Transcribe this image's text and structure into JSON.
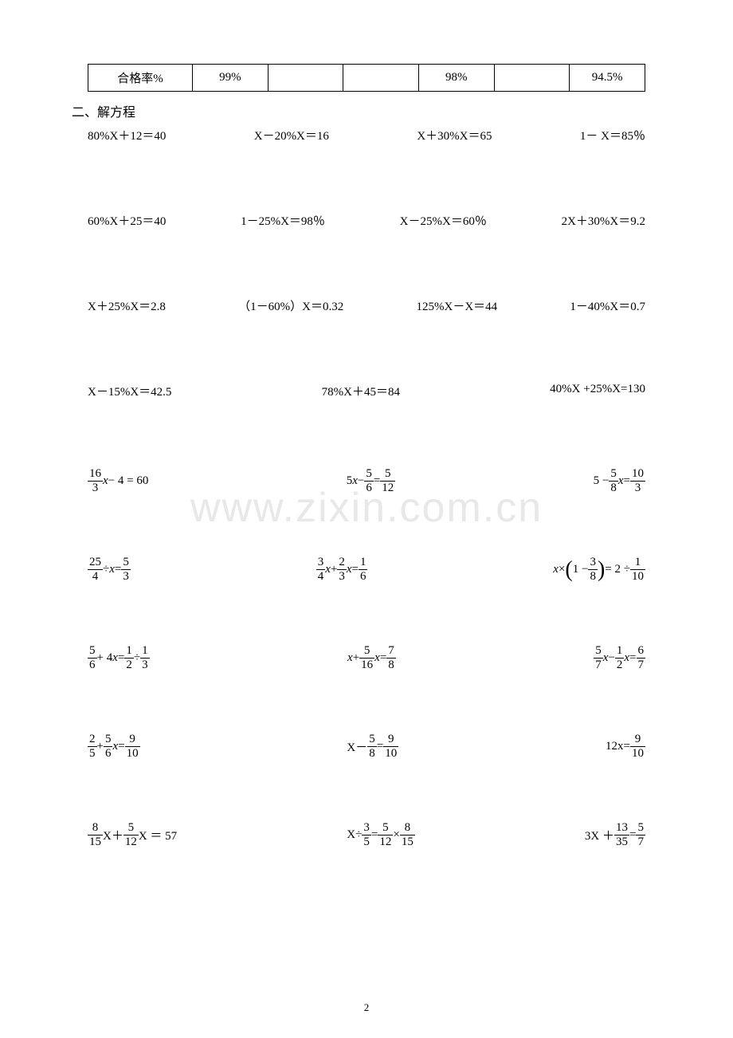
{
  "table": {
    "row_label": "合格率%",
    "cells": [
      "99%",
      "",
      "",
      "98%",
      "",
      "94.5%"
    ]
  },
  "section_title": "二、解方程",
  "plain_rows": [
    [
      "80%X＋12＝40",
      "X－20%X＝16",
      "X＋30%X＝65",
      "1－ X＝85％"
    ],
    [
      "60%X＋25＝40",
      "1－25%X＝98％",
      "X－25%X＝60％",
      "2X＋30%X＝9.2"
    ],
    [
      "X＋25%X＝2.8",
      "（1－60%）X＝0.32",
      "125%X－X＝44",
      "1－40%X＝0.7"
    ],
    [
      "X－15%X＝42.5",
      "78%X＋45＝84",
      "40%X +25%X=130"
    ]
  ],
  "frac_rows": [
    [
      {
        "parts": [
          {
            "t": "frac",
            "n": "16",
            "d": "3"
          },
          {
            "t": "txt",
            "v": " "
          },
          {
            "t": "ital",
            "v": "x"
          },
          {
            "t": "txt",
            "v": " − 4 = 60"
          }
        ]
      },
      {
        "parts": [
          {
            "t": "txt",
            "v": "5"
          },
          {
            "t": "ital",
            "v": "x"
          },
          {
            "t": "txt",
            "v": " − "
          },
          {
            "t": "frac",
            "n": "5",
            "d": "6"
          },
          {
            "t": "txt",
            "v": " = "
          },
          {
            "t": "frac",
            "n": "5",
            "d": "12"
          }
        ]
      },
      {
        "parts": [
          {
            "t": "txt",
            "v": "5 − "
          },
          {
            "t": "frac",
            "n": "5",
            "d": "8"
          },
          {
            "t": "txt",
            "v": " "
          },
          {
            "t": "ital",
            "v": "x"
          },
          {
            "t": "txt",
            "v": " = "
          },
          {
            "t": "frac",
            "n": "10",
            "d": "3"
          }
        ]
      }
    ],
    [
      {
        "parts": [
          {
            "t": "frac",
            "n": "25",
            "d": "4"
          },
          {
            "t": "txt",
            "v": " ÷ "
          },
          {
            "t": "ital",
            "v": "x"
          },
          {
            "t": "txt",
            "v": " = "
          },
          {
            "t": "frac",
            "n": "5",
            "d": "3"
          }
        ]
      },
      {
        "parts": [
          {
            "t": "frac",
            "n": "3",
            "d": "4"
          },
          {
            "t": "txt",
            "v": " "
          },
          {
            "t": "ital",
            "v": "x"
          },
          {
            "t": "txt",
            "v": " + "
          },
          {
            "t": "frac",
            "n": "2",
            "d": "3"
          },
          {
            "t": "txt",
            "v": " "
          },
          {
            "t": "ital",
            "v": "x"
          },
          {
            "t": "txt",
            "v": " = "
          },
          {
            "t": "frac",
            "n": "1",
            "d": "6"
          }
        ]
      },
      {
        "parts": [
          {
            "t": "ital",
            "v": "x"
          },
          {
            "t": "txt",
            "v": " × "
          },
          {
            "t": "pl"
          },
          {
            "t": "txt",
            "v": "1 − "
          },
          {
            "t": "frac",
            "n": "3",
            "d": "8"
          },
          {
            "t": "pr"
          },
          {
            "t": "txt",
            "v": " = 2 ÷ "
          },
          {
            "t": "frac",
            "n": "1",
            "d": "10"
          }
        ]
      }
    ],
    [
      {
        "parts": [
          {
            "t": "frac",
            "n": "5",
            "d": "6"
          },
          {
            "t": "txt",
            "v": " + 4"
          },
          {
            "t": "ital",
            "v": "x"
          },
          {
            "t": "txt",
            "v": " = "
          },
          {
            "t": "frac",
            "n": "1",
            "d": "2"
          },
          {
            "t": "txt",
            "v": " ÷ "
          },
          {
            "t": "frac",
            "n": "1",
            "d": "3"
          }
        ]
      },
      {
        "parts": [
          {
            "t": "ital",
            "v": "x"
          },
          {
            "t": "txt",
            "v": " + "
          },
          {
            "t": "frac",
            "n": "5",
            "d": "16"
          },
          {
            "t": "txt",
            "v": " "
          },
          {
            "t": "ital",
            "v": "x"
          },
          {
            "t": "txt",
            "v": " = "
          },
          {
            "t": "frac",
            "n": "7",
            "d": "8"
          }
        ]
      },
      {
        "parts": [
          {
            "t": "frac",
            "n": "5",
            "d": "7"
          },
          {
            "t": "txt",
            "v": " "
          },
          {
            "t": "ital",
            "v": "x"
          },
          {
            "t": "txt",
            "v": " − "
          },
          {
            "t": "frac",
            "n": "1",
            "d": "2"
          },
          {
            "t": "txt",
            "v": " "
          },
          {
            "t": "ital",
            "v": "x"
          },
          {
            "t": "txt",
            "v": " = "
          },
          {
            "t": "frac",
            "n": "6",
            "d": "7"
          }
        ]
      }
    ],
    [
      {
        "parts": [
          {
            "t": "frac",
            "n": "2",
            "d": "5"
          },
          {
            "t": "txt",
            "v": " + "
          },
          {
            "t": "frac",
            "n": "5",
            "d": "6"
          },
          {
            "t": "txt",
            "v": " "
          },
          {
            "t": "ital",
            "v": "x"
          },
          {
            "t": "txt",
            "v": " = "
          },
          {
            "t": "frac",
            "n": "9",
            "d": "10"
          }
        ]
      },
      {
        "parts": [
          {
            "t": "txt",
            "v": "X－"
          },
          {
            "t": "frac",
            "n": "5",
            "d": "8"
          },
          {
            "t": "txt",
            "v": "= "
          },
          {
            "t": "frac",
            "n": "9",
            "d": "10"
          }
        ]
      },
      {
        "parts": [
          {
            "t": "txt",
            "v": "12x="
          },
          {
            "t": "frac",
            "n": "9",
            "d": "10"
          }
        ]
      }
    ],
    [
      {
        "parts": [
          {
            "t": "frac",
            "n": "8",
            "d": "15"
          },
          {
            "t": "txt",
            "v": "X＋"
          },
          {
            "t": "frac",
            "n": "5",
            "d": "12"
          },
          {
            "t": "txt",
            "v": "X ＝ 57"
          }
        ]
      },
      {
        "parts": [
          {
            "t": "txt",
            "v": "X÷"
          },
          {
            "t": "frac",
            "n": "3",
            "d": "5"
          },
          {
            "t": "txt",
            "v": "= "
          },
          {
            "t": "frac",
            "n": "5",
            "d": "12"
          },
          {
            "t": "txt",
            "v": "×"
          },
          {
            "t": "frac",
            "n": "8",
            "d": "15"
          }
        ]
      },
      {
        "parts": [
          {
            "t": "txt",
            "v": "3X ＋"
          },
          {
            "t": "frac",
            "n": "13",
            "d": "35"
          },
          {
            "t": "txt",
            "v": "= "
          },
          {
            "t": "frac",
            "n": "5",
            "d": "7"
          }
        ]
      }
    ]
  ],
  "watermark": "www.zixin.com.cn",
  "page_number": "2"
}
